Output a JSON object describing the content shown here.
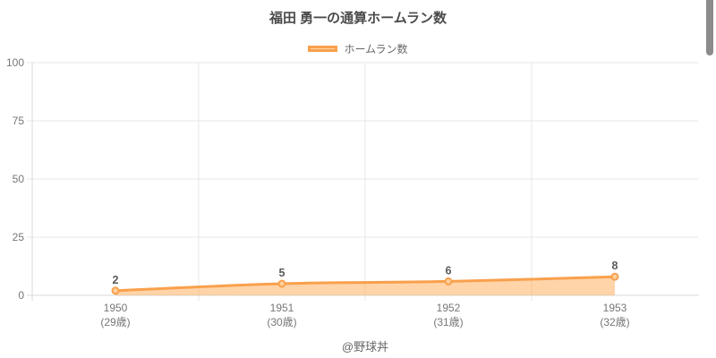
{
  "footer": {
    "credit": "@野球丼"
  },
  "colors": {
    "line": "#f9a04c",
    "area_fill": "rgba(255,159,64,0.45)",
    "point_fill": "#ffcf9d",
    "grid": "#e7e7e7",
    "axis": "#d9d9d9",
    "tick_label": "#767676",
    "value_label": "#5a5a5a"
  },
  "chart_data": {
    "type": "area",
    "title": "福田 勇一の通算ホームラン数",
    "legend": [
      "ホームラン数"
    ],
    "legend_position": "top",
    "categories": [
      "1950",
      "1951",
      "1952",
      "1953"
    ],
    "category_sublabels": [
      "(29歳)",
      "(30歳)",
      "(31歳)",
      "(32歳)"
    ],
    "values": [
      2,
      5,
      6,
      8
    ],
    "xlabel": "",
    "ylabel": "",
    "ylim": [
      0,
      100
    ],
    "yticks": [
      0,
      25,
      50,
      75,
      100
    ],
    "grid": true
  }
}
